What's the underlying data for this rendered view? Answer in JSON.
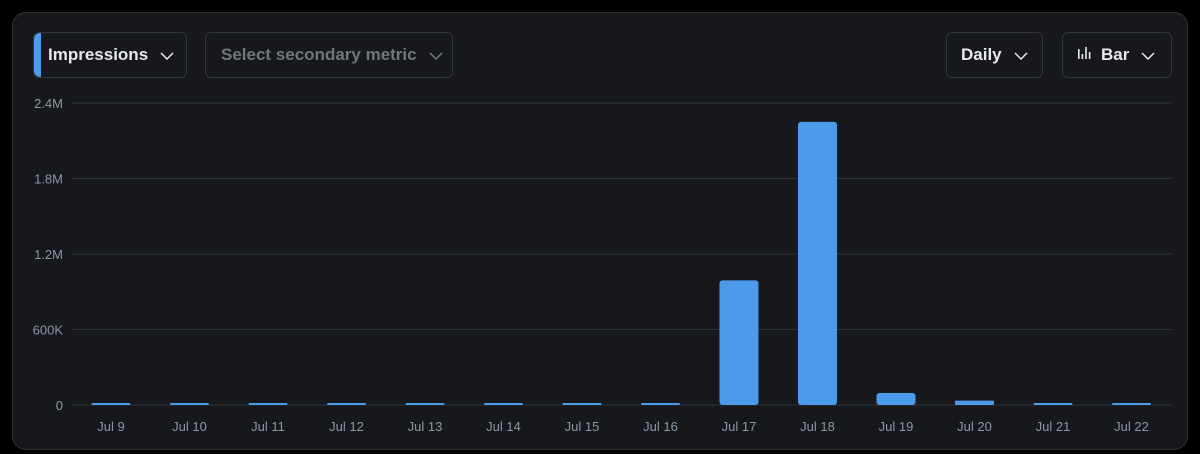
{
  "controls": {
    "primary_metric": "Impressions",
    "secondary_placeholder": "Select secondary metric",
    "interval": "Daily",
    "chart_type": "Bar",
    "accent_color": "#4c9bea"
  },
  "chart_data": {
    "type": "bar",
    "categories": [
      "Jul 9",
      "Jul 10",
      "Jul 11",
      "Jul 12",
      "Jul 13",
      "Jul 14",
      "Jul 15",
      "Jul 16",
      "Jul 17",
      "Jul 18",
      "Jul 19",
      "Jul 20",
      "Jul 21",
      "Jul 22"
    ],
    "series": [
      {
        "values": [
          3000,
          2500,
          2500,
          2500,
          3000,
          4000,
          4000,
          3000,
          990000,
          2250000,
          95000,
          35000,
          15000,
          6000
        ]
      }
    ],
    "yticks": [
      "0",
      "600K",
      "1.2M",
      "1.8M",
      "2.4M"
    ],
    "ylim": [
      0,
      2400000
    ],
    "grid": true,
    "bar_color": "#4c9bea"
  }
}
